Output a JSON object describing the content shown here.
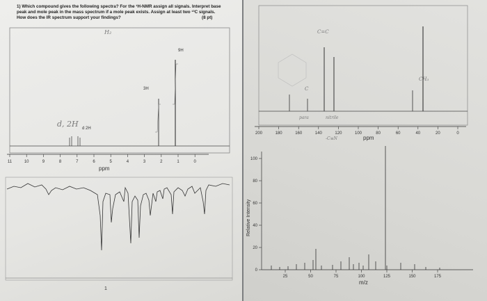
{
  "question": {
    "line1": "1) Which compound gives the following spectra? For the ¹H-NMR assign all signals. Interpret base",
    "line2": "peak and mole peak in the mass spectrum if a mole peak exists. Assign at least two ¹³C signals.",
    "line3": "How does the IR spectrum support your findings?",
    "points": "(8 pt)"
  },
  "hnmr": {
    "axis_unit": "ppm",
    "ticks": [
      "11",
      "10",
      "9",
      "8",
      "7",
      "6",
      "5",
      "4",
      "3",
      "2",
      "1",
      "0"
    ],
    "peak_labels": [
      "d 2H",
      "3H",
      "9H"
    ],
    "notes": [
      "H₂",
      "d, 2H"
    ]
  },
  "cnmr": {
    "axis_unit": "ppm",
    "ticks": [
      "200",
      "180",
      "160",
      "140",
      "120",
      "100",
      "80",
      "60",
      "40",
      "20",
      "0"
    ],
    "notes": [
      "C=C",
      "C",
      "CH₃",
      "-C≡N",
      "para",
      "nitrile"
    ]
  },
  "ms": {
    "xlabel": "m/z",
    "ylabel": "Relative Intensity",
    "xticks": [
      "25",
      "50",
      "75",
      "100",
      "125",
      "150",
      "175"
    ],
    "yticks": [
      "0",
      "20",
      "40",
      "60",
      "80",
      "100"
    ]
  },
  "ir": {
    "note": "1"
  }
}
